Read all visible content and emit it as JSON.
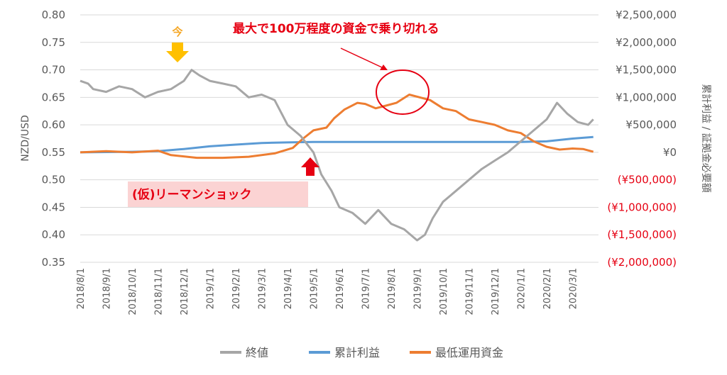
{
  "chart_data": {
    "type": "line",
    "left_axis": {
      "title": "NZD/USD",
      "ticks": [
        "0.80",
        "0.75",
        "0.70",
        "0.65",
        "0.60",
        "0.55",
        "0.50",
        "0.45",
        "0.40",
        "0.35"
      ],
      "range": [
        0.35,
        0.8
      ]
    },
    "right_axis": {
      "title": "累計利益 / 証拠金必要額",
      "ticks": [
        "¥2,500,000",
        "¥2,000,000",
        "¥1,500,000",
        "¥1,000,000",
        "¥500,000",
        "¥0",
        "(¥500,000)",
        "(¥1,000,000)",
        "(¥1,500,000)",
        "(¥2,000,000)"
      ],
      "negative_color": "#e60012",
      "range": [
        -2000000,
        2500000
      ]
    },
    "x_axis": {
      "ticks": [
        "2018/8/1",
        "2018/9/1",
        "2018/10/1",
        "2018/11/1",
        "2018/12/1",
        "2019/1/1",
        "2019/2/1",
        "2019/3/1",
        "2019/4/1",
        "2019/5/1",
        "2019/6/1",
        "2019/7/1",
        "2019/8/1",
        "2019/9/1",
        "2019/10/1",
        "2019/11/1",
        "2019/12/1",
        "2020/1/1",
        "2020/2/1",
        "2020/3/1"
      ]
    },
    "series": [
      {
        "name": "終値",
        "color": "#a6a6a6",
        "axis": "left",
        "points": [
          [
            0,
            0.68
          ],
          [
            0.3,
            0.675
          ],
          [
            0.5,
            0.665
          ],
          [
            1,
            0.66
          ],
          [
            1.5,
            0.67
          ],
          [
            2,
            0.665
          ],
          [
            2.5,
            0.65
          ],
          [
            3,
            0.66
          ],
          [
            3.5,
            0.665
          ],
          [
            4,
            0.68
          ],
          [
            4.3,
            0.7
          ],
          [
            4.6,
            0.69
          ],
          [
            5,
            0.68
          ],
          [
            5.5,
            0.675
          ],
          [
            6,
            0.67
          ],
          [
            6.5,
            0.65
          ],
          [
            7,
            0.655
          ],
          [
            7.5,
            0.645
          ],
          [
            8,
            0.6
          ],
          [
            8.5,
            0.58
          ],
          [
            9,
            0.55
          ],
          [
            9.3,
            0.51
          ],
          [
            9.7,
            0.48
          ],
          [
            10,
            0.45
          ],
          [
            10.5,
            0.44
          ],
          [
            11,
            0.42
          ],
          [
            11.5,
            0.445
          ],
          [
            12,
            0.42
          ],
          [
            12.5,
            0.41
          ],
          [
            13,
            0.39
          ],
          [
            13.3,
            0.4
          ],
          [
            13.6,
            0.43
          ],
          [
            14,
            0.46
          ],
          [
            14.5,
            0.48
          ],
          [
            15,
            0.5
          ],
          [
            15.5,
            0.52
          ],
          [
            16,
            0.535
          ],
          [
            16.5,
            0.55
          ],
          [
            17,
            0.57
          ],
          [
            17.5,
            0.59
          ],
          [
            18,
            0.61
          ],
          [
            18.4,
            0.64
          ],
          [
            18.8,
            0.62
          ],
          [
            19.2,
            0.605
          ],
          [
            19.6,
            0.6
          ],
          [
            19.8,
            0.61
          ]
        ]
      },
      {
        "name": "累計利益",
        "color": "#5b9bd5",
        "axis": "right",
        "points": [
          [
            0,
            0
          ],
          [
            2,
            10000
          ],
          [
            3,
            20000
          ],
          [
            4,
            60000
          ],
          [
            5,
            110000
          ],
          [
            6,
            140000
          ],
          [
            7,
            170000
          ],
          [
            8,
            180000
          ],
          [
            9,
            190000
          ],
          [
            12,
            190000
          ],
          [
            15,
            190000
          ],
          [
            17,
            190000
          ],
          [
            18,
            200000
          ],
          [
            19,
            250000
          ],
          [
            19.8,
            280000
          ]
        ]
      },
      {
        "name": "最低運用資金",
        "color": "#ed7d31",
        "axis": "right",
        "points": [
          [
            0,
            0
          ],
          [
            1,
            20000
          ],
          [
            2,
            0
          ],
          [
            3,
            30000
          ],
          [
            3.5,
            -50000
          ],
          [
            4.5,
            -100000
          ],
          [
            5.5,
            -100000
          ],
          [
            6.5,
            -80000
          ],
          [
            7.5,
            -20000
          ],
          [
            8.2,
            80000
          ],
          [
            8.6,
            250000
          ],
          [
            9,
            400000
          ],
          [
            9.5,
            450000
          ],
          [
            9.8,
            620000
          ],
          [
            10.2,
            780000
          ],
          [
            10.7,
            900000
          ],
          [
            11,
            880000
          ],
          [
            11.4,
            800000
          ],
          [
            11.8,
            850000
          ],
          [
            12.2,
            900000
          ],
          [
            12.7,
            1050000
          ],
          [
            13.1,
            1000000
          ],
          [
            13.5,
            950000
          ],
          [
            14,
            800000
          ],
          [
            14.5,
            750000
          ],
          [
            15,
            600000
          ],
          [
            15.5,
            550000
          ],
          [
            16,
            500000
          ],
          [
            16.5,
            400000
          ],
          [
            17,
            350000
          ],
          [
            17.5,
            200000
          ],
          [
            18,
            100000
          ],
          [
            18.5,
            50000
          ],
          [
            19,
            70000
          ],
          [
            19.4,
            60000
          ],
          [
            19.8,
            10000
          ]
        ]
      }
    ],
    "legend": {
      "position": "bottom",
      "items": [
        "終値",
        "累計利益",
        "最低運用資金"
      ]
    },
    "annotations": {
      "top_text": "最大で100万程度の資金で乗り切れる",
      "ima_label": "今",
      "lehman_label": "(仮)リーマンショック"
    }
  }
}
